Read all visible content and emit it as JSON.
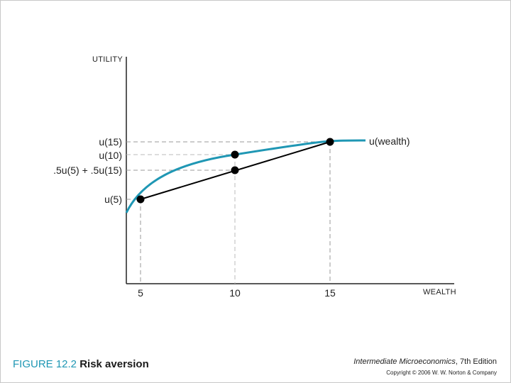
{
  "chart_data": {
    "type": "line",
    "xlabel": "WEALTH",
    "ylabel": "UTILITY",
    "x_ticks": [
      "5",
      "10",
      "15"
    ],
    "y_marks": [
      "u(15)",
      "u(10)",
      ".5u(5) + .5u(15)",
      "u(5)"
    ],
    "series": [
      {
        "name": "u(wealth)",
        "x": [
          4.3,
          5,
          7,
          10,
          13,
          15,
          16.8
        ],
        "y": [
          0.0,
          0.3,
          0.82,
          1.15,
          1.35,
          1.42,
          1.44
        ]
      }
    ],
    "points": [
      {
        "x": 5,
        "y": 0.3
      },
      {
        "x": 10,
        "y": 1.15
      },
      {
        "x": 10,
        "y": 0.86
      },
      {
        "x": 15,
        "y": 1.42
      }
    ],
    "colors": {
      "curve": "#1f97b4",
      "chord": "#000000",
      "dash": "#999999"
    }
  },
  "caption": {
    "figure_number": "FIGURE 12.2",
    "title": "Risk aversion"
  },
  "credits": {
    "book": "Intermediate Microeconomics",
    "edition": ", 7th Edition",
    "copyright": "Copyright © 2006 W. W. Norton & Company"
  }
}
